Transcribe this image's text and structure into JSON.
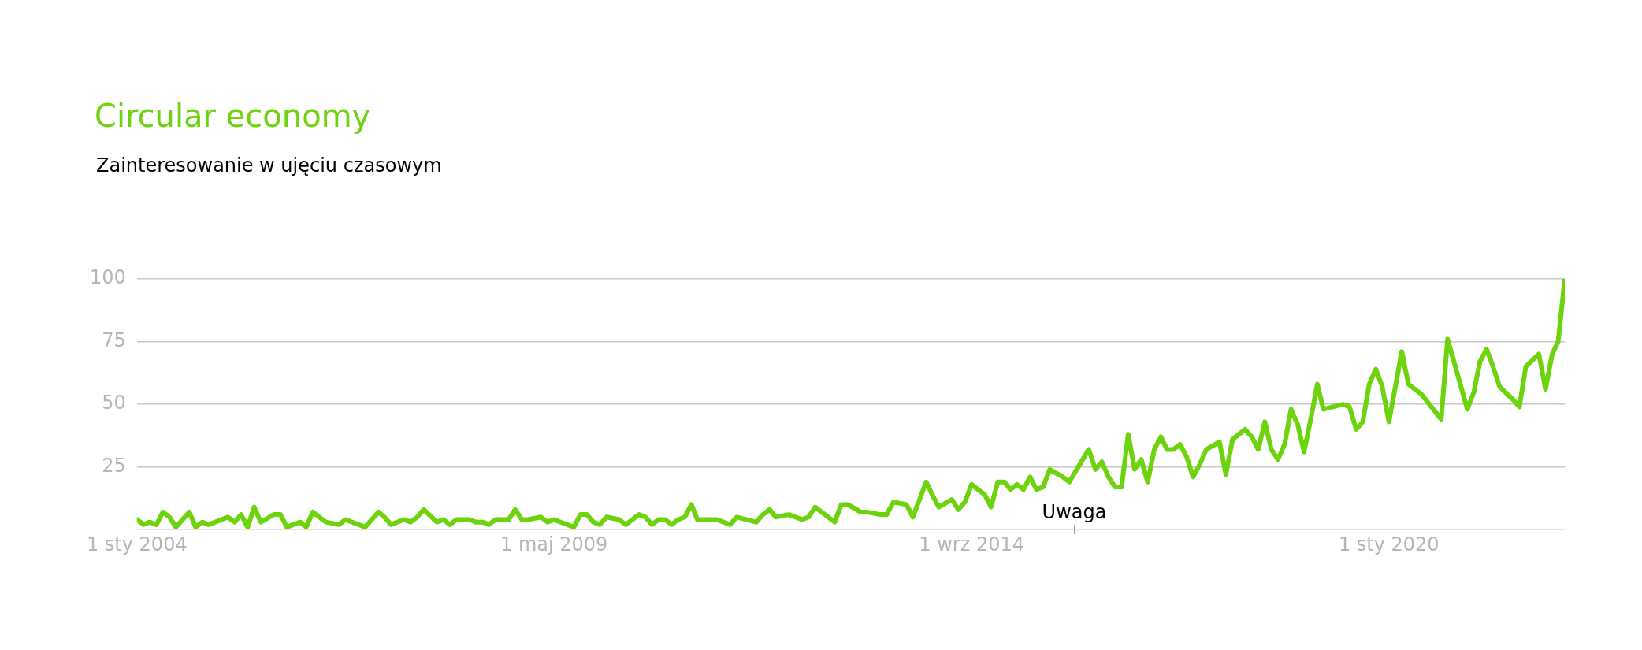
{
  "chart_data": {
    "type": "line",
    "title": "Circular economy",
    "subtitle": "Zainteresowanie w ujęciu czasowym",
    "x": [
      "2004-01",
      "2004-02",
      "2004-03",
      "2004-04",
      "2004-05",
      "2004-06",
      "2004-07",
      "2004-09",
      "2004-10",
      "2004-11",
      "2004-12",
      "2005-03",
      "2005-04",
      "2005-05",
      "2005-06",
      "2005-07",
      "2005-08",
      "2005-10",
      "2005-11",
      "2005-12",
      "2006-02",
      "2006-03",
      "2006-04",
      "2006-06",
      "2006-08",
      "2006-09",
      "2006-12",
      "2007-02",
      "2007-03",
      "2007-04",
      "2007-06",
      "2007-07",
      "2007-08",
      "2007-09",
      "2007-11",
      "2007-12",
      "2008-01",
      "2008-02",
      "2008-04",
      "2008-05",
      "2008-06",
      "2008-07",
      "2008-08",
      "2008-10",
      "2008-11",
      "2008-12",
      "2009-01",
      "2009-03",
      "2009-04",
      "2009-05",
      "2009-08",
      "2009-09",
      "2009-10",
      "2009-11",
      "2009-12",
      "2010-01",
      "2010-03",
      "2010-04",
      "2010-06",
      "2010-07",
      "2010-08",
      "2010-09",
      "2010-10",
      "2010-11",
      "2010-12",
      "2011-01",
      "2011-02",
      "2011-03",
      "2011-06",
      "2011-08",
      "2011-09",
      "2011-12",
      "2012-01",
      "2012-02",
      "2012-03",
      "2012-05",
      "2012-07",
      "2012-08",
      "2012-09",
      "2012-11",
      "2012-12",
      "2013-01",
      "2013-02",
      "2013-04",
      "2013-05",
      "2013-07",
      "2013-08",
      "2013-09",
      "2013-11",
      "2013-12",
      "2014-02",
      "2014-03",
      "2014-04",
      "2014-06",
      "2014-07",
      "2014-08",
      "2014-09",
      "2014-10",
      "2014-11",
      "2014-12",
      "2015-01",
      "2015-02",
      "2015-03",
      "2015-04",
      "2015-05",
      "2015-06",
      "2015-07",
      "2015-08",
      "2015-09",
      "2015-11",
      "2015-12",
      "2016-03",
      "2016-04",
      "2016-05",
      "2016-06",
      "2016-07",
      "2016-08",
      "2016-09",
      "2016-10",
      "2016-11",
      "2016-12",
      "2017-01",
      "2017-02",
      "2017-03",
      "2017-04",
      "2017-05",
      "2017-06",
      "2017-07",
      "2017-08",
      "2017-09",
      "2017-11",
      "2017-12",
      "2018-01",
      "2018-03",
      "2018-04",
      "2018-05",
      "2018-06",
      "2018-07",
      "2018-08",
      "2018-09",
      "2018-10",
      "2018-11",
      "2018-12",
      "2019-01",
      "2019-02",
      "2019-03",
      "2019-06",
      "2019-07",
      "2019-08",
      "2019-09",
      "2019-10",
      "2019-11",
      "2019-12",
      "2020-01",
      "2020-03",
      "2020-04",
      "2020-06",
      "2020-09",
      "2020-10",
      "2021-01",
      "2021-02",
      "2021-03",
      "2021-04",
      "2021-05",
      "2021-06",
      "2021-08",
      "2021-09",
      "2021-10",
      "2021-12",
      "2022-01",
      "2022-02",
      "2022-03",
      "2022-04"
    ],
    "series": [
      {
        "color": "#6cd30c",
        "values": [
          4,
          2,
          3,
          2,
          7,
          5,
          1,
          7,
          1,
          3,
          2,
          5,
          3,
          6,
          1,
          9,
          3,
          6,
          6,
          1,
          3,
          1,
          7,
          3,
          2,
          4,
          1,
          7,
          5,
          2,
          4,
          3,
          5,
          8,
          3,
          4,
          2,
          4,
          4,
          3,
          3,
          2,
          4,
          4,
          8,
          4,
          4,
          5,
          3,
          4,
          1,
          6,
          6,
          3,
          2,
          5,
          4,
          2,
          6,
          5,
          2,
          4,
          4,
          2,
          4,
          5,
          10,
          4,
          4,
          2,
          5,
          3,
          6,
          8,
          5,
          6,
          4,
          5,
          9,
          5,
          3,
          10,
          10,
          7,
          7,
          6,
          6,
          11,
          10,
          5,
          19,
          14,
          9,
          12,
          8,
          11,
          18,
          16,
          14,
          9,
          19,
          19,
          16,
          18,
          16,
          21,
          16,
          17,
          24,
          21,
          19,
          32,
          24,
          27,
          21,
          17,
          17,
          38,
          24,
          28,
          19,
          32,
          37,
          32,
          32,
          34,
          29,
          21,
          26,
          32,
          35,
          22,
          36,
          40,
          37,
          32,
          43,
          32,
          28,
          34,
          48,
          42,
          31,
          44,
          58,
          48,
          50,
          49,
          40,
          43,
          58,
          64,
          57,
          43,
          71,
          58,
          54,
          44,
          76,
          48,
          55,
          67,
          72,
          65,
          57,
          52,
          49,
          65,
          70,
          56,
          70,
          75,
          100
        ]
      }
    ],
    "xlim": [
      "2004-01-01",
      "2022-04-01"
    ],
    "xticks": [
      {
        "value": "2004-01-01",
        "label": "1 sty 2004"
      },
      {
        "value": "2009-05-01",
        "label": "1 maj 2009"
      },
      {
        "value": "2014-09-01",
        "label": "1 wrz 2014"
      },
      {
        "value": "2020-01-01",
        "label": "1 sty 2020"
      }
    ],
    "ylim": [
      0,
      100
    ],
    "yticks": [
      {
        "value": 0,
        "label": null
      },
      25,
      50,
      75,
      100
    ],
    "grid": "y",
    "marker": "none",
    "line_style": "solid",
    "annotations": [
      "Uwaga"
    ]
  }
}
